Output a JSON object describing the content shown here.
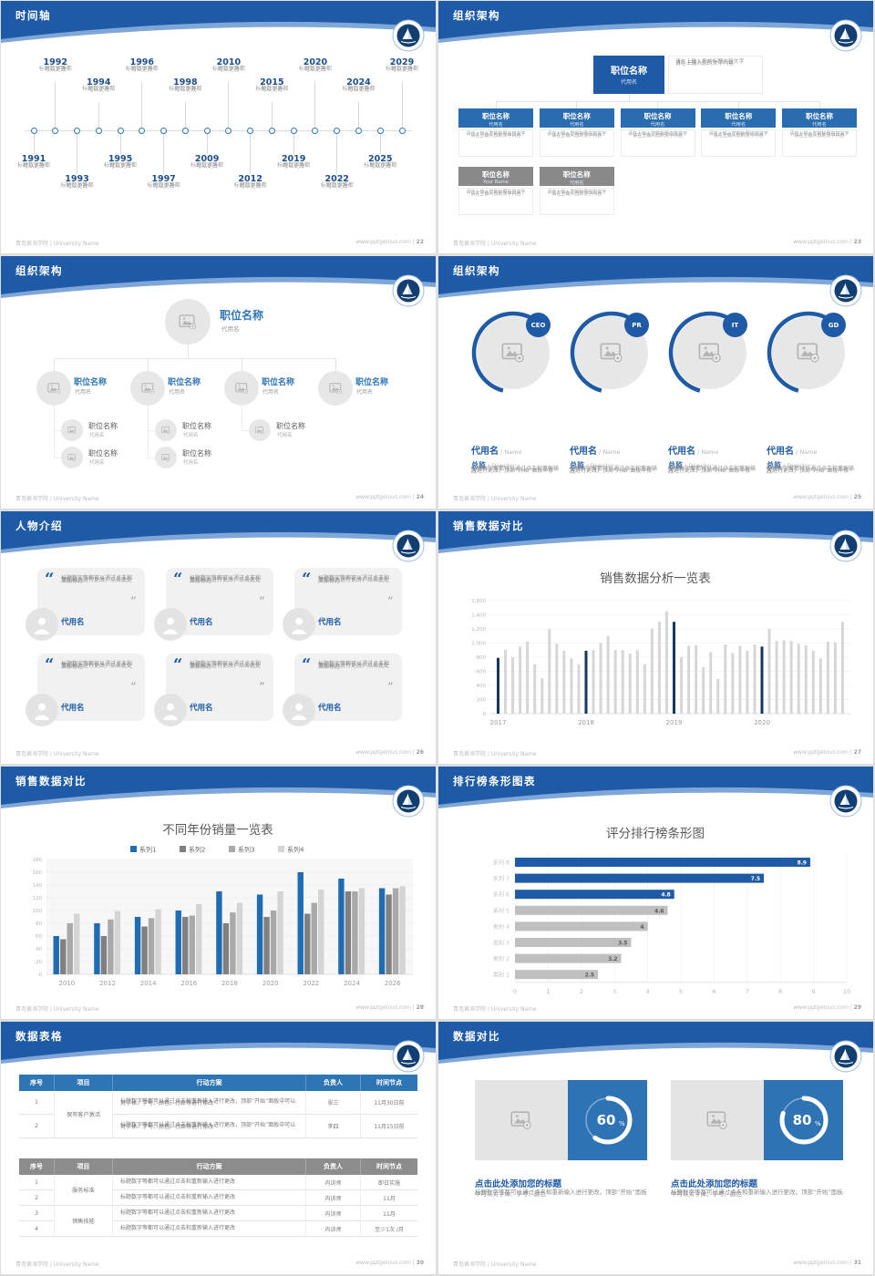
{
  "footer": {
    "left": "青岛黄海学院 | University Name",
    "site": "www.pptgenius.com"
  },
  "colors": {
    "header_blue": "#1e5aa6",
    "header_light": "#7fa6d9",
    "accent": "#2e75b6",
    "navy_bar": "#17375e",
    "gray_bar": "#d6d6d6",
    "box_gray": "#8c8c8c",
    "title_navy": "#1f4e8c",
    "text_gray": "#8f8f8f"
  },
  "slides": [
    {
      "page": "22",
      "type": "timeline",
      "title": "时间轴",
      "timeline": {
        "desc_lines": [
          "标题数字等都",
          "可以更改"
        ],
        "items": [
          {
            "year": "1991",
            "side": "bottom",
            "tier": "near"
          },
          {
            "year": "1992",
            "side": "top",
            "tier": "far"
          },
          {
            "year": "1993",
            "side": "bottom",
            "tier": "far"
          },
          {
            "year": "1994",
            "side": "top",
            "tier": "near"
          },
          {
            "year": "1995",
            "side": "bottom",
            "tier": "near"
          },
          {
            "year": "1996",
            "side": "top",
            "tier": "far"
          },
          {
            "year": "1997",
            "side": "bottom",
            "tier": "far"
          },
          {
            "year": "1998",
            "side": "top",
            "tier": "near"
          },
          {
            "year": "2009",
            "side": "bottom",
            "tier": "near"
          },
          {
            "year": "2010",
            "side": "top",
            "tier": "far"
          },
          {
            "year": "2012",
            "side": "bottom",
            "tier": "far"
          },
          {
            "year": "2015",
            "side": "top",
            "tier": "near"
          },
          {
            "year": "2019",
            "side": "bottom",
            "tier": "near"
          },
          {
            "year": "2020",
            "side": "top",
            "tier": "far"
          },
          {
            "year": "2022",
            "side": "bottom",
            "tier": "far"
          },
          {
            "year": "2024",
            "side": "top",
            "tier": "near"
          },
          {
            "year": "2025",
            "side": "bottom",
            "tier": "near"
          },
          {
            "year": "2029",
            "side": "top",
            "tier": "far"
          }
        ]
      }
    },
    {
      "page": "23",
      "type": "org-boxes",
      "title": "组织架构",
      "org": {
        "box_title": "职位名称",
        "box_sub": "代用名",
        "note_lines": [
          "请在上输入您的标题内容文字",
          "请在上输入您的文字内容"
        ],
        "row1_subs": [
          "代用名",
          "代用名",
          "代用名",
          "代用名",
          "代用名"
        ],
        "row2_subs": [
          "Your Name",
          "代用名"
        ]
      }
    },
    {
      "page": "24",
      "type": "org-tree",
      "title": "组织架构",
      "tree": {
        "node_title": "职位名称",
        "node_sub": "代用名",
        "children_sub_counts": [
          2,
          2,
          1,
          0
        ]
      }
    },
    {
      "page": "25",
      "type": "profiles",
      "title": "组织架构",
      "profiles": {
        "badges": [
          "CEO",
          "PR",
          "IT",
          "GD"
        ],
        "name": "代用名",
        "name_en": "Name",
        "role": "总监",
        "role_en": "Director",
        "desc": "标题数字等都可以通过点击和重新输入进行更改，顶部“开始”面板中修改"
      }
    },
    {
      "page": "26",
      "type": "quotes",
      "title": "人物介绍",
      "quotes": {
        "count": 6,
        "text": "标题数字等都可以通过点击和重新输入进行更改，点击此处添加标题",
        "name": "代用名"
      }
    },
    {
      "page": "27",
      "type": "chart-columns",
      "title": "销售数据对比",
      "chart_ref": 0
    },
    {
      "page": "28",
      "type": "chart-grouped",
      "title": "销售数据对比",
      "chart_ref": 1
    },
    {
      "page": "29",
      "type": "chart-hbars",
      "title": "排行榜条形图表",
      "chart_ref": 2
    },
    {
      "page": "30",
      "type": "tables",
      "title": "数据表格",
      "tables": [
        {
          "style": "blue",
          "headers": [
            "序号",
            "项目",
            "行动方案",
            "负责人",
            "时间节点"
          ],
          "rows": [
            [
              "1",
              "保有客户激活",
              "标题数字等都可以通过点击和重新输入进行更改，顶部“开始”面板中可以对字体、字号、颜色、行距等进行修改",
              "张三",
              "11月30日前"
            ],
            [
              "2",
              "",
              "标题数字等都可以通过点击和重新输入进行更改，顶部“开始”面板中可以对字体、字号、颜色、行距等进行修改",
              "李四",
              "11月15日前"
            ]
          ]
        },
        {
          "style": "gray",
          "headers": [
            "序号",
            "项目",
            "行动方案",
            "负责人",
            "时间节点"
          ],
          "rows": [
            [
              "1",
              "服务标准",
              "标题数字等都可以通过点击和重新输入进行更改",
              "内训师",
              "即日实施"
            ],
            [
              "2",
              "",
              "标题数字等都可以通过点击和重新输入进行更改",
              "内训师",
              "11月"
            ],
            [
              "3",
              "销售技能",
              "标题数字等都可以通过点击和重新输入进行更改",
              "内训师",
              "11月"
            ],
            [
              "4",
              "",
              "标题数字等都可以通过点击和重新输入进行更改",
              "内训师",
              "至少1次 /月"
            ]
          ]
        }
      ]
    },
    {
      "page": "31",
      "type": "donuts",
      "title": "数据对比",
      "donuts": {
        "heading": "点击此处添加您的标题",
        "body": "标题数字等都可以通过点击和重新输入进行更改，顶部“开始”面板中可以对字体、字号、颜色",
        "items": [
          {
            "pct": 60
          },
          {
            "pct": 80
          }
        ]
      }
    }
  ],
  "chart_data": [
    {
      "type": "bar",
      "title": "销售数据分析一览表",
      "x_tick_labels": [
        "2017",
        "2018",
        "2019",
        "2020"
      ],
      "x_tick_bar_indices": [
        0,
        12,
        24,
        36
      ],
      "highlight_indices": [
        0,
        12,
        24,
        36
      ],
      "values": [
        790,
        900,
        800,
        950,
        1020,
        700,
        500,
        1200,
        990,
        890,
        780,
        700,
        890,
        900,
        1000,
        1100,
        900,
        900,
        850,
        900,
        700,
        1200,
        1300,
        1450,
        1300,
        800,
        960,
        970,
        660,
        870,
        490,
        980,
        860,
        960,
        890,
        980,
        950,
        1200,
        1030,
        1040,
        1030,
        990,
        970,
        890,
        780,
        1020,
        1010,
        1300
      ],
      "ylim": [
        0,
        1600
      ],
      "ytick_step": 200,
      "bar_color": "#d6d6d6",
      "highlight_color": "#17375e",
      "grid": true,
      "legend_position": "none"
    },
    {
      "type": "bar",
      "title": "不同年份销量一览表",
      "categories": [
        "2010",
        "2012",
        "2014",
        "2016",
        "2018",
        "2020",
        "2022",
        "2024",
        "2026"
      ],
      "series": [
        {
          "name": "系列1",
          "color": "#1f6cb4",
          "values": [
            60,
            80,
            90,
            100,
            130,
            125,
            160,
            150,
            135
          ]
        },
        {
          "name": "系列2",
          "color": "#808080",
          "values": [
            55,
            60,
            75,
            90,
            80,
            90,
            95,
            130,
            125
          ]
        },
        {
          "name": "系列3",
          "color": "#a9a9a9",
          "values": [
            80,
            86,
            88,
            92,
            97,
            100,
            112,
            130,
            135
          ]
        },
        {
          "name": "系列4",
          "color": "#d4d4d4",
          "values": [
            95,
            99,
            102,
            110,
            112,
            130,
            133,
            135,
            138
          ]
        }
      ],
      "ylim": [
        0,
        180
      ],
      "ytick_step": 20,
      "grid": true,
      "legend_position": "top"
    },
    {
      "type": "bar-horizontal",
      "title": "评分排行榜条形图",
      "categories": [
        "系列 8",
        "系列 7",
        "系列 6",
        "系列 5",
        "类别 4",
        "类别 3",
        "类别 2",
        "类别 1"
      ],
      "values": [
        8.9,
        7.5,
        4.8,
        4.6,
        4,
        3.5,
        3.2,
        2.5
      ],
      "value_labels": [
        "8.9",
        "7.5",
        "4.8",
        "4.6",
        "4",
        "3.5",
        "3.2",
        "2.5"
      ],
      "colors": [
        "#1e5aa6",
        "#1e5aa6",
        "#1e5aa6",
        "#bfbfbf",
        "#bfbfbf",
        "#bfbfbf",
        "#bfbfbf",
        "#bfbfbf"
      ],
      "xlim": [
        0,
        10
      ],
      "xtick_step": 1,
      "grid": true,
      "legend_position": "none"
    }
  ]
}
